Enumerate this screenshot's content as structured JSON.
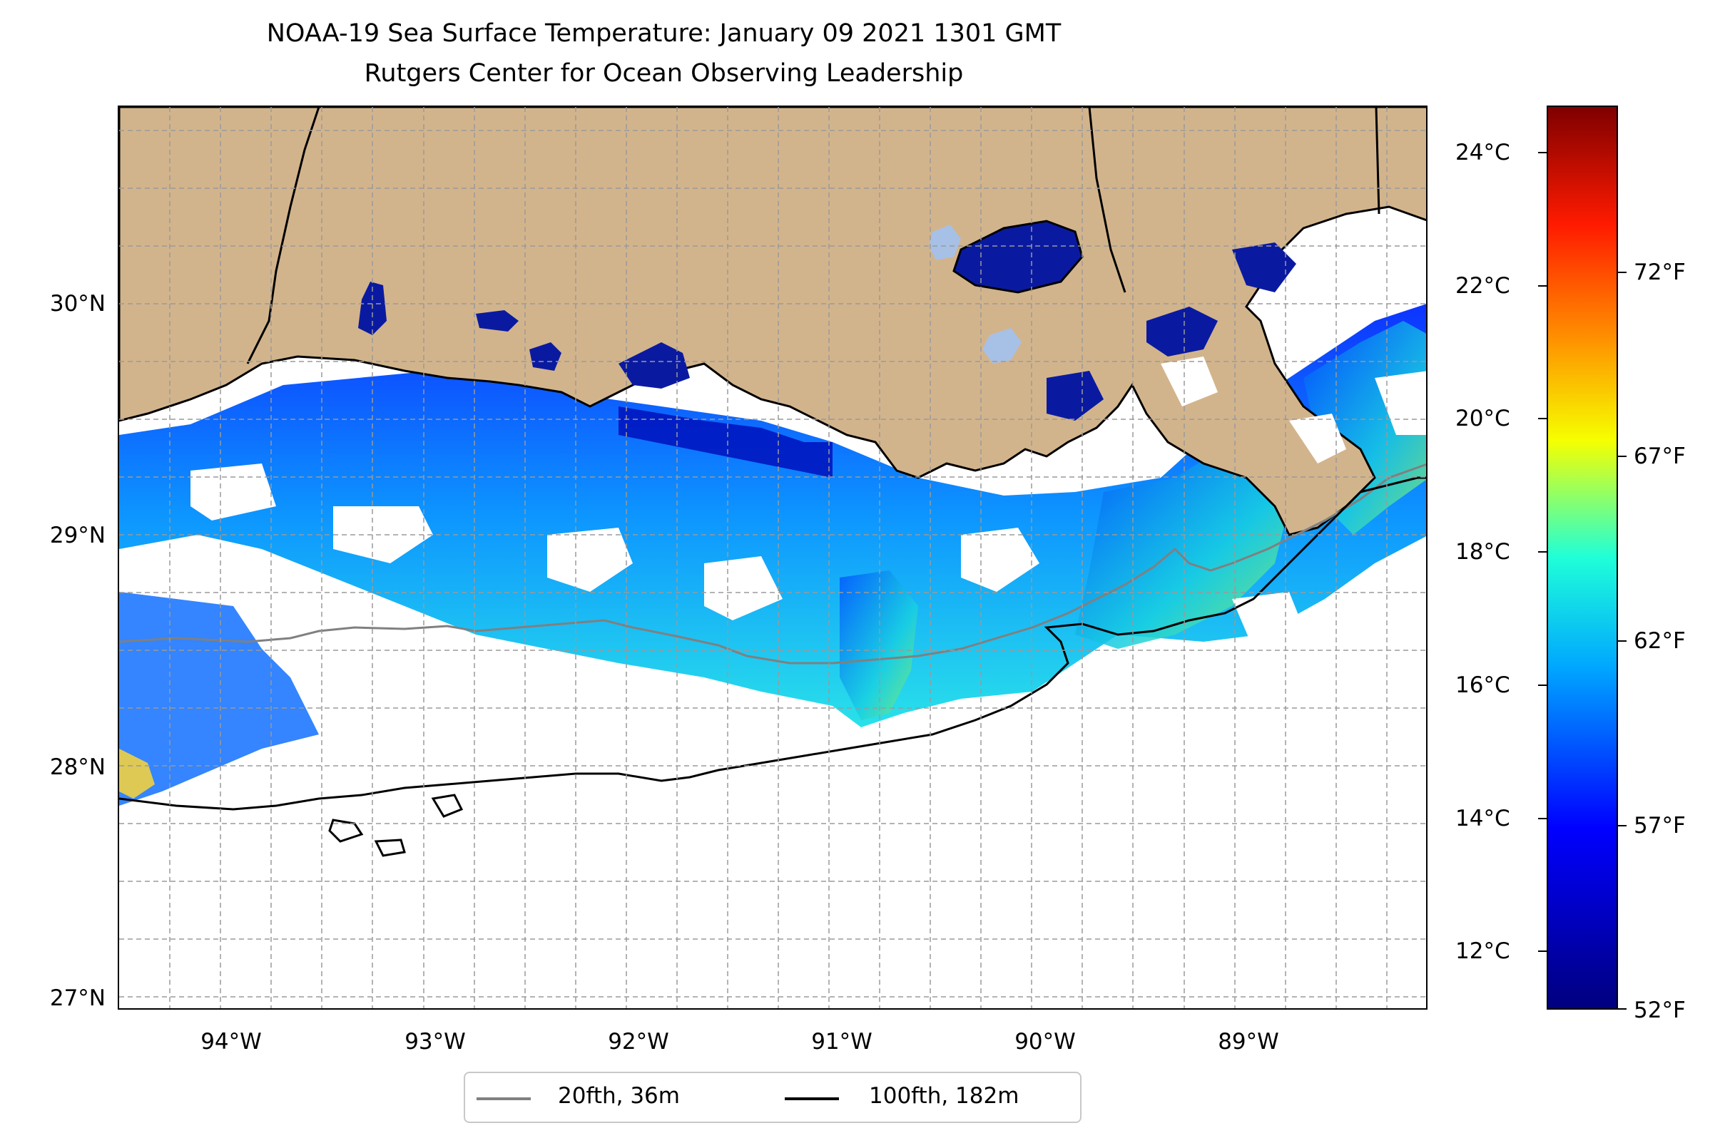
{
  "title": {
    "line1": "NOAA-19 Sea Surface Temperature: January 09 2021 1301 GMT",
    "line2": "Rutgers Center for Ocean Observing Leadership"
  },
  "map": {
    "type": "sea surface temperature map",
    "lat_labels": [
      "30°N",
      "29°N",
      "28°N",
      "27°N"
    ],
    "lon_labels": [
      "94°W",
      "93°W",
      "92°W",
      "91°W",
      "90°W",
      "89°W"
    ],
    "lat_range": [
      26.93,
      30.85
    ],
    "lon_range": [
      -94.55,
      -88.1
    ],
    "grid": true,
    "colors": {
      "land": "#d2b48c",
      "no_data": "#ffffff",
      "inland_water": "#a7c0e6"
    }
  },
  "colorbar": {
    "celsius_labels": [
      "24°C",
      "22°C",
      "20°C",
      "18°C",
      "16°C",
      "14°C",
      "12°C"
    ],
    "fahrenheit_labels": [
      "72°F",
      "67°F",
      "62°F",
      "57°F",
      "52°F"
    ],
    "colormap": "jet",
    "range_c": [
      11.1,
      24.7
    ]
  },
  "legend": {
    "items": [
      {
        "label": "20fth, 36m",
        "color": "#808080"
      },
      {
        "label": "100fth, 182m",
        "color": "#000000"
      }
    ],
    "placement": "bottom-center"
  }
}
